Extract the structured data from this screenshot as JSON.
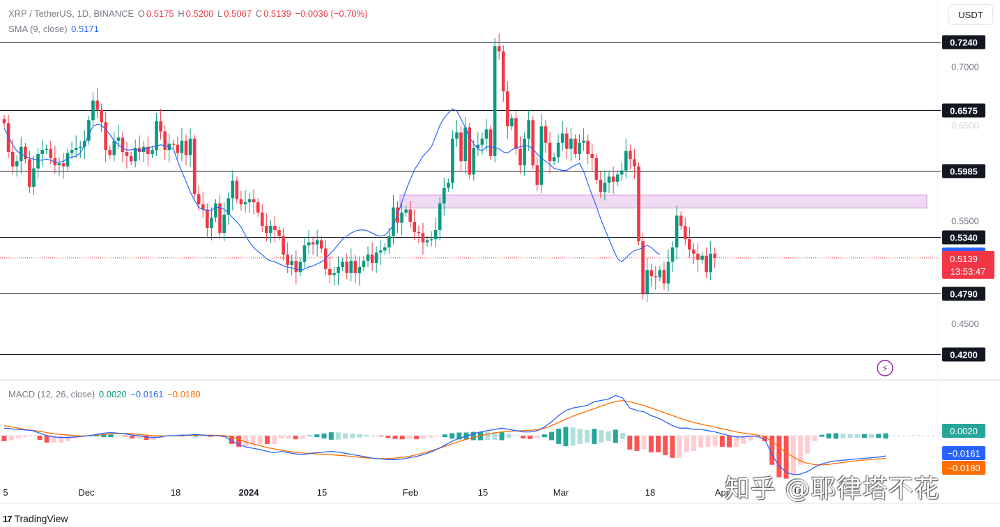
{
  "header": {
    "symbol": "XRP / TetherUS, 1D, BINANCE",
    "open_label": "O",
    "open_value": "0.5175",
    "high_label": "H",
    "high_value": "0.5200",
    "low_label": "L",
    "low_value": "0.5067",
    "close_label": "C",
    "close_value": "0.5139",
    "change": "−0.0036 (−0.70%)",
    "sma_label": "SMA (9, close)",
    "sma_value": "0.5171",
    "currency": "USDT"
  },
  "macd_legend": {
    "label": "MACD (12, 26, close)",
    "histogram": "0.0020",
    "macd": "−0.0161",
    "signal": "−0.0180"
  },
  "footer": {
    "brand": "TradingView",
    "logo_text": "17"
  },
  "watermark": "知乎 @耶律塔不花",
  "colors": {
    "up": "#089981",
    "down": "#f23645",
    "sma": "#2962ff",
    "macd_line": "#2962ff",
    "signal_line": "#ff6d00",
    "zone": "#e1bee7"
  },
  "chart_data": {
    "type": "candlestick",
    "price_axis": {
      "ticks": [
        "0.7000",
        "0.5500",
        "0.4500"
      ],
      "faded_ticks": [
        "0.6500"
      ],
      "range": [
        0.395,
        0.765
      ]
    },
    "levels": [
      {
        "label": "0.7240",
        "value": 0.724
      },
      {
        "label": "0.6575",
        "value": 0.6575
      },
      {
        "label": "0.5985",
        "value": 0.5985
      },
      {
        "label": "0.5340",
        "value": 0.534
      },
      {
        "label": "0.4790",
        "value": 0.479
      },
      {
        "label": "0.4200",
        "value": 0.42
      }
    ],
    "current_price": {
      "label": "0.5139",
      "value": 0.5139,
      "countdown": "13:53:47"
    },
    "sma_last": {
      "label": "0.5171",
      "value": 0.5171
    },
    "zone": {
      "from": 0.5625,
      "to": 0.575
    },
    "x_axis_labels": [
      "5",
      "Dec",
      "18",
      "2024",
      "15",
      "Feb",
      "15",
      "Mar",
      "18",
      "Apr",
      "15"
    ],
    "macd_axis_labels": [
      {
        "label": "0.0020",
        "value": 0.002,
        "kind": "histogram"
      },
      {
        "label": "−0.0161",
        "value": -0.0161,
        "kind": "macd"
      },
      {
        "label": "−0.0180",
        "value": -0.018,
        "kind": "signal"
      }
    ],
    "closes": [
      0.645,
      0.617,
      0.603,
      0.608,
      0.622,
      0.61,
      0.583,
      0.601,
      0.615,
      0.619,
      0.62,
      0.611,
      0.604,
      0.606,
      0.603,
      0.616,
      0.619,
      0.621,
      0.622,
      0.628,
      0.648,
      0.667,
      0.658,
      0.646,
      0.619,
      0.614,
      0.628,
      0.631,
      0.617,
      0.613,
      0.608,
      0.621,
      0.617,
      0.622,
      0.615,
      0.619,
      0.647,
      0.637,
      0.619,
      0.625,
      0.624,
      0.616,
      0.628,
      0.614,
      0.63,
      0.576,
      0.566,
      0.561,
      0.543,
      0.553,
      0.567,
      0.538,
      0.556,
      0.572,
      0.589,
      0.571,
      0.566,
      0.568,
      0.571,
      0.568,
      0.558,
      0.545,
      0.538,
      0.545,
      0.541,
      0.535,
      0.517,
      0.507,
      0.511,
      0.5,
      0.51,
      0.526,
      0.529,
      0.527,
      0.531,
      0.523,
      0.503,
      0.497,
      0.499,
      0.505,
      0.51,
      0.499,
      0.511,
      0.499,
      0.505,
      0.511,
      0.517,
      0.509,
      0.519,
      0.521,
      0.524,
      0.535,
      0.563,
      0.548,
      0.558,
      0.561,
      0.549,
      0.539,
      0.538,
      0.529,
      0.531,
      0.532,
      0.541,
      0.567,
      0.582,
      0.587,
      0.63,
      0.636,
      0.608,
      0.641,
      0.595,
      0.621,
      0.624,
      0.63,
      0.639,
      0.613,
      0.72,
      0.715,
      0.676,
      0.642,
      0.65,
      0.62,
      0.604,
      0.63,
      0.648,
      0.604,
      0.585,
      0.642,
      0.626,
      0.608,
      0.612,
      0.626,
      0.635,
      0.62,
      0.63,
      0.615,
      0.626,
      0.628,
      0.615,
      0.611,
      0.59,
      0.578,
      0.587,
      0.593,
      0.588,
      0.595,
      0.599,
      0.618,
      0.61,
      0.603,
      0.53,
      0.479,
      0.502,
      0.496,
      0.495,
      0.502,
      0.489,
      0.51,
      0.524,
      0.555,
      0.545,
      0.532,
      0.522,
      0.518,
      0.512,
      0.516,
      0.5,
      0.518,
      0.514
    ],
    "sma": [
      0.64,
      0.632,
      0.624,
      0.618,
      0.615,
      0.613,
      0.611,
      0.61,
      0.609,
      0.609,
      0.61,
      0.609,
      0.607,
      0.607,
      0.608,
      0.611,
      0.612,
      0.613,
      0.616,
      0.624,
      0.634,
      0.642,
      0.644,
      0.643,
      0.639,
      0.634,
      0.628,
      0.624,
      0.621,
      0.619,
      0.619,
      0.62,
      0.618,
      0.619,
      0.621,
      0.622,
      0.623,
      0.624,
      0.623,
      0.622,
      0.62,
      0.608,
      0.598,
      0.588,
      0.578,
      0.57,
      0.563,
      0.561,
      0.56,
      0.56,
      0.563,
      0.563,
      0.561,
      0.558,
      0.553,
      0.549,
      0.544,
      0.536,
      0.529,
      0.524,
      0.52,
      0.517,
      0.513,
      0.511,
      0.51,
      0.508,
      0.506,
      0.505,
      0.504,
      0.503,
      0.502,
      0.503,
      0.505,
      0.506,
      0.508,
      0.51,
      0.513,
      0.518,
      0.522,
      0.527,
      0.532,
      0.535,
      0.538,
      0.54,
      0.541,
      0.541,
      0.54,
      0.538,
      0.536,
      0.535,
      0.536,
      0.54,
      0.546,
      0.556,
      0.568,
      0.58,
      0.59,
      0.6,
      0.606,
      0.613,
      0.617,
      0.622,
      0.632,
      0.643,
      0.65,
      0.655,
      0.659,
      0.657,
      0.649,
      0.641,
      0.631,
      0.625,
      0.62,
      0.618,
      0.622,
      0.622,
      0.621,
      0.62,
      0.617,
      0.616,
      0.619,
      0.621,
      0.622,
      0.623,
      0.623,
      0.62,
      0.615,
      0.611,
      0.608,
      0.605,
      0.601,
      0.6,
      0.599,
      0.599,
      0.602,
      0.604,
      0.606,
      0.598,
      0.586,
      0.575,
      0.564,
      0.552,
      0.542,
      0.532,
      0.522,
      0.513,
      0.51,
      0.514,
      0.518,
      0.521,
      0.522,
      0.524,
      0.526,
      0.524,
      0.52,
      0.517
    ],
    "macd": [
      0.006,
      0.0055,
      0.005,
      0.0045,
      0.004,
      0.002,
      0.0,
      -0.001,
      -0.0015,
      -0.0015,
      -0.001,
      -0.0005,
      0.0,
      0.001,
      0.002,
      0.0025,
      0.002,
      0.0015,
      0.0005,
      0.0,
      -0.001,
      -0.0015,
      -0.001,
      0.0,
      0.0,
      0.0005,
      0.0005,
      0.001,
      0.0005,
      0.0,
      0.0,
      -0.0005,
      -0.004,
      -0.007,
      -0.009,
      -0.01,
      -0.011,
      -0.0125,
      -0.0135,
      -0.0125,
      -0.0135,
      -0.0145,
      -0.015,
      -0.014,
      -0.0135,
      -0.013,
      -0.0125,
      -0.013,
      -0.014,
      -0.015,
      -0.016,
      -0.017,
      -0.018,
      -0.0185,
      -0.019,
      -0.019,
      -0.0185,
      -0.0175,
      -0.0165,
      -0.015,
      -0.013,
      -0.0105,
      -0.0075,
      -0.0045,
      -0.002,
      -0.0005,
      0.0015,
      0.003,
      0.004,
      0.005,
      0.006,
      0.005,
      0.004,
      0.003,
      0.003,
      0.004,
      0.007,
      0.011,
      0.016,
      0.02,
      0.022,
      0.023,
      0.024,
      0.027,
      0.028,
      0.029,
      0.032,
      0.03,
      0.022,
      0.02,
      0.019,
      0.016,
      0.014,
      0.011,
      0.008,
      0.006,
      0.006,
      0.005,
      0.005,
      0.004,
      0.003,
      0.0015,
      0.0,
      -0.001,
      -0.001,
      -0.0005,
      -0.0005,
      -0.003,
      -0.015,
      -0.024,
      -0.029,
      -0.031,
      -0.0305,
      -0.0285,
      -0.025,
      -0.0225,
      -0.021,
      -0.02,
      -0.0195,
      -0.019,
      -0.0185,
      -0.018,
      -0.0175,
      -0.017,
      -0.0161
    ],
    "signal": [
      0.008,
      0.007,
      0.006,
      0.005,
      0.0042,
      0.0035,
      0.0025,
      0.0015,
      0.001,
      0.0005,
      0.0,
      -0.0002,
      0.0,
      0.0005,
      0.001,
      0.0015,
      0.0018,
      0.0018,
      0.0015,
      0.001,
      0.0005,
      0.0,
      -0.0002,
      -0.0002,
      0.0,
      0.0,
      0.0002,
      0.0004,
      0.0005,
      0.0004,
      0.0003,
      0.0,
      -0.001,
      -0.003,
      -0.005,
      -0.0065,
      -0.008,
      -0.0095,
      -0.0105,
      -0.0115,
      -0.0125,
      -0.0132,
      -0.0138,
      -0.0142,
      -0.0145,
      -0.0148,
      -0.0152,
      -0.0156,
      -0.016,
      -0.0166,
      -0.0172,
      -0.0176,
      -0.018,
      -0.0182,
      -0.0182,
      -0.0178,
      -0.0172,
      -0.0164,
      -0.0152,
      -0.0138,
      -0.0122,
      -0.0104,
      -0.0085,
      -0.0065,
      -0.0045,
      -0.003,
      -0.0015,
      0.0,
      0.0012,
      0.0022,
      0.003,
      0.0035,
      0.0038,
      0.004,
      0.0042,
      0.0048,
      0.006,
      0.008,
      0.0105,
      0.013,
      0.0155,
      0.0175,
      0.0195,
      0.0215,
      0.0235,
      0.0255,
      0.0272,
      0.0278,
      0.027,
      0.0255,
      0.0238,
      0.022,
      0.02,
      0.018,
      0.016,
      0.014,
      0.012,
      0.0105,
      0.0092,
      0.008,
      0.0068,
      0.0055,
      0.0042,
      0.003,
      0.002,
      0.0012,
      0.0005,
      -0.001,
      -0.0045,
      -0.009,
      -0.0135,
      -0.017,
      -0.02,
      -0.022,
      -0.023,
      -0.0232,
      -0.0228,
      -0.022,
      -0.0212,
      -0.0205,
      -0.0199,
      -0.0194,
      -0.0189,
      -0.0185,
      -0.018
    ]
  }
}
